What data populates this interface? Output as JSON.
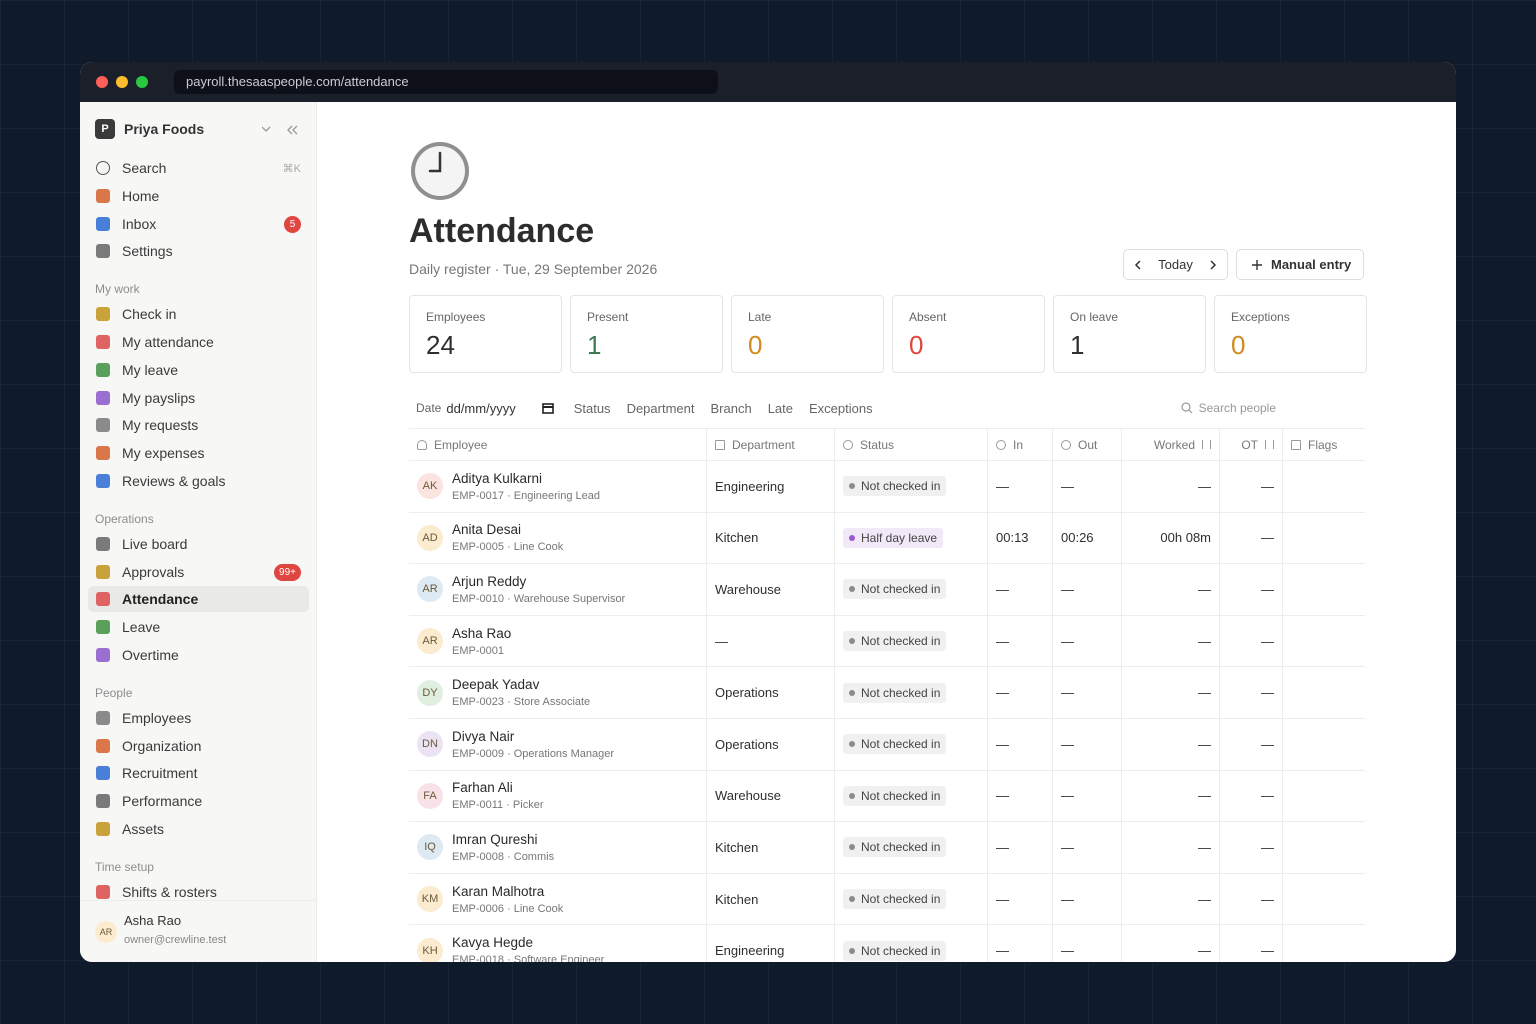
{
  "browser": {
    "url": "payroll.thesaaspeople.com/attendance"
  },
  "sidebar": {
    "workspace": {
      "initial": "P",
      "name": "Priya Foods"
    },
    "nav": [
      {
        "label": "Search",
        "shortcut": "⌘K"
      },
      {
        "label": "Home"
      },
      {
        "label": "Inbox",
        "badge": 5
      },
      {
        "label": "Settings"
      }
    ],
    "sections": [
      {
        "title": "My work",
        "items": [
          {
            "label": "Check in"
          },
          {
            "label": "My attendance"
          },
          {
            "label": "My leave"
          },
          {
            "label": "My payslips"
          },
          {
            "label": "My requests"
          },
          {
            "label": "My expenses"
          },
          {
            "label": "Reviews & goals"
          }
        ]
      },
      {
        "title": "Operations",
        "items": [
          {
            "label": "Live board"
          },
          {
            "label": "Approvals",
            "badge": "99+"
          },
          {
            "label": "Attendance",
            "active": true
          },
          {
            "label": "Leave"
          },
          {
            "label": "Overtime"
          }
        ]
      },
      {
        "title": "People",
        "items": [
          {
            "label": "Employees"
          },
          {
            "label": "Organization"
          },
          {
            "label": "Recruitment"
          },
          {
            "label": "Performance"
          },
          {
            "label": "Assets"
          }
        ]
      },
      {
        "title": "Time setup",
        "items": [
          {
            "label": "Shifts & rosters"
          }
        ]
      }
    ],
    "user": {
      "initials": "AR",
      "name": "Asha Rao",
      "email": "owner@crewline.test"
    }
  },
  "page": {
    "title": "Attendance",
    "subtitle": "Daily register · Tue, 29 September 2026",
    "today": "Today",
    "manual_entry": "Manual entry",
    "stats": [
      {
        "label": "Employees",
        "value": 24,
        "color": "#2f2f2f"
      },
      {
        "label": "Present",
        "value": 1,
        "color": "#3f7a52"
      },
      {
        "label": "Late",
        "value": 0,
        "color": "#d08a1e"
      },
      {
        "label": "Absent",
        "value": 0,
        "color": "#e0463f"
      },
      {
        "label": "On leave",
        "value": 1,
        "color": "#2f2f2f"
      },
      {
        "label": "Exceptions",
        "value": 0,
        "color": "#d08a1e"
      }
    ],
    "filters": {
      "date_label": "Date",
      "date_placeholder": "dd/mm/yyyy",
      "items": [
        "Status",
        "Department",
        "Branch",
        "Late",
        "Exceptions"
      ],
      "search_placeholder": "Search people"
    },
    "table": {
      "columns": [
        "Employee",
        "Department",
        "Status",
        "In",
        "Out",
        "Worked",
        "OT",
        "Flags"
      ],
      "rows": [
        {
          "initials": "AK",
          "avatar_color": "#fbe3df",
          "name": "Aditya Kulkarni",
          "detail": "EMP-0017 · Engineering Lead",
          "department": "Engineering",
          "status": "Not checked in",
          "status_color": "#8b8b8b",
          "in": "—",
          "out": "—",
          "worked": "—",
          "ot": "—"
        },
        {
          "initials": "AD",
          "avatar_color": "#fbeccf",
          "name": "Anita Desai",
          "detail": "EMP-0005 · Line Cook",
          "department": "Kitchen",
          "status": "Half day leave",
          "status_color": "#9b59c9",
          "in": "00:13",
          "out": "00:26",
          "worked": "00h 08m",
          "ot": "—"
        },
        {
          "initials": "AR",
          "avatar_color": "#dde9f3",
          "name": "Arjun Reddy",
          "detail": "EMP-0010 · Warehouse Supervisor",
          "department": "Warehouse",
          "status": "Not checked in",
          "status_color": "#8b8b8b",
          "in": "—",
          "out": "—",
          "worked": "—",
          "ot": "—"
        },
        {
          "initials": "AR",
          "avatar_color": "#fbeccf",
          "name": "Asha Rao",
          "detail": "EMP-0001",
          "department": "—",
          "status": "Not checked in",
          "status_color": "#8b8b8b",
          "in": "—",
          "out": "—",
          "worked": "—",
          "ot": "—"
        },
        {
          "initials": "DY",
          "avatar_color": "#e0efdf",
          "name": "Deepak Yadav",
          "detail": "EMP-0023 · Store Associate",
          "department": "Operations",
          "status": "Not checked in",
          "status_color": "#8b8b8b",
          "in": "—",
          "out": "—",
          "worked": "—",
          "ot": "—"
        },
        {
          "initials": "DN",
          "avatar_color": "#ebe3f3",
          "name": "Divya Nair",
          "detail": "EMP-0009 · Operations Manager",
          "department": "Operations",
          "status": "Not checked in",
          "status_color": "#8b8b8b",
          "in": "—",
          "out": "—",
          "worked": "—",
          "ot": "—"
        },
        {
          "initials": "FA",
          "avatar_color": "#f9e1e8",
          "name": "Farhan Ali",
          "detail": "EMP-0011 · Picker",
          "department": "Warehouse",
          "status": "Not checked in",
          "status_color": "#8b8b8b",
          "in": "—",
          "out": "—",
          "worked": "—",
          "ot": "—"
        },
        {
          "initials": "IQ",
          "avatar_color": "#dde9f3",
          "name": "Imran Qureshi",
          "detail": "EMP-0008 · Commis",
          "department": "Kitchen",
          "status": "Not checked in",
          "status_color": "#8b8b8b",
          "in": "—",
          "out": "—",
          "worked": "—",
          "ot": "—"
        },
        {
          "initials": "KM",
          "avatar_color": "#fbeccf",
          "name": "Karan Malhotra",
          "detail": "EMP-0006 · Line Cook",
          "department": "Kitchen",
          "status": "Not checked in",
          "status_color": "#8b8b8b",
          "in": "—",
          "out": "—",
          "worked": "—",
          "ot": "—"
        },
        {
          "initials": "KH",
          "avatar_color": "#fbeccf",
          "name": "Kavya Hegde",
          "detail": "EMP-0018 · Software Engineer",
          "department": "Engineering",
          "status": "Not checked in",
          "status_color": "#8b8b8b",
          "in": "—",
          "out": "—",
          "worked": "—",
          "ot": "—"
        }
      ]
    }
  }
}
